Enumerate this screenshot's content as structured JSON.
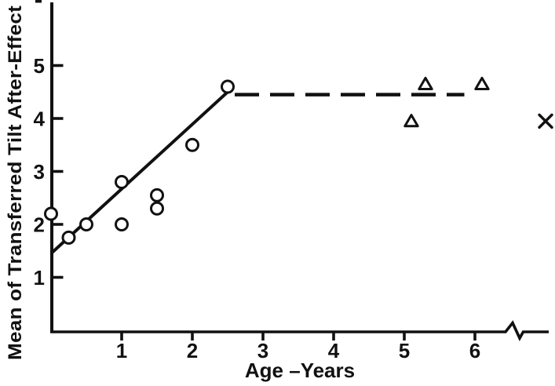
{
  "figure": {
    "background": "#ffffff",
    "ink_color": "#111111"
  },
  "chart_data": {
    "type": "scatter",
    "title": "",
    "xlabel": "Age –Years",
    "ylabel": "Mean of Transferred Tilt After-Effect",
    "xlim": [
      0,
      7.2
    ],
    "ylim": [
      0,
      6.1
    ],
    "x_ticks": [
      1,
      2,
      3,
      4,
      5,
      6
    ],
    "y_ticks": [
      1,
      2,
      3,
      4,
      5
    ],
    "grid": false,
    "legend": "none",
    "axis_break": {
      "axis": "x",
      "location_between": [
        6.4,
        6.7
      ],
      "note": "zigzag break in x-axis before far-right cross marker"
    },
    "series": [
      {
        "name": "circle-points",
        "marker": "circle",
        "points": [
          {
            "x": 0.0,
            "y": 2.2
          },
          {
            "x": 0.25,
            "y": 1.75
          },
          {
            "x": 0.5,
            "y": 2.0
          },
          {
            "x": 1.0,
            "y": 2.0
          },
          {
            "x": 1.0,
            "y": 2.8
          },
          {
            "x": 1.5,
            "y": 2.3
          },
          {
            "x": 1.5,
            "y": 2.55
          },
          {
            "x": 2.0,
            "y": 3.5
          },
          {
            "x": 2.5,
            "y": 4.6
          }
        ]
      },
      {
        "name": "triangle-points",
        "marker": "triangle",
        "points": [
          {
            "x": 5.1,
            "y": 3.95
          },
          {
            "x": 5.3,
            "y": 4.65
          },
          {
            "x": 6.1,
            "y": 4.65
          }
        ]
      },
      {
        "name": "cross-point-beyond-break",
        "marker": "x",
        "beyond_break": true,
        "points": [
          {
            "x": 7.0,
            "y": 3.95
          }
        ]
      }
    ],
    "fit_lines": [
      {
        "name": "rising-fit-line",
        "style": "solid",
        "from": {
          "x": 0.0,
          "y": 1.45
        },
        "to": {
          "x": 2.5,
          "y": 4.5
        }
      },
      {
        "name": "plateau-dashed-line",
        "style": "dashed",
        "from": {
          "x": 2.6,
          "y": 4.45
        },
        "to": {
          "x": 5.85,
          "y": 4.45
        }
      }
    ]
  }
}
